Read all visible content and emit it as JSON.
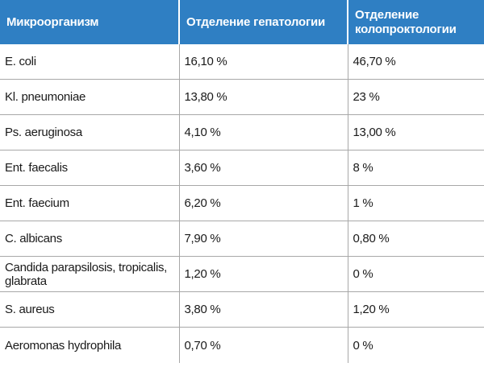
{
  "table": {
    "headers": [
      "Микроорганизм",
      "Отделение гепатологии",
      "Отделение колопроктологии"
    ],
    "rows": [
      [
        "E. coli",
        "16,10 %",
        "46,70 %"
      ],
      [
        "Kl. pneumoniae",
        "13,80 %",
        "23 %"
      ],
      [
        "Ps. aeruginosa",
        "4,10 %",
        "13,00 %"
      ],
      [
        "Ent. faecalis",
        "3,60 %",
        "8 %"
      ],
      [
        "Ent. faecium",
        "6,20 %",
        "1 %"
      ],
      [
        "C. albicans",
        "7,90 %",
        "0,80 %"
      ],
      [
        "Candida parapsilosis, tropicalis, glabrata",
        "1,20 %",
        "0 %"
      ],
      [
        "S. aureus",
        "3,80 %",
        "1,20 %"
      ],
      [
        "Aeromonas hydrophila",
        "0,70 %",
        "0 %"
      ]
    ]
  },
  "colors": {
    "header_bg": "#2f7fc3",
    "header_text": "#ffffff",
    "grid": "#a8a8a8",
    "text": "#1a1a1a"
  }
}
